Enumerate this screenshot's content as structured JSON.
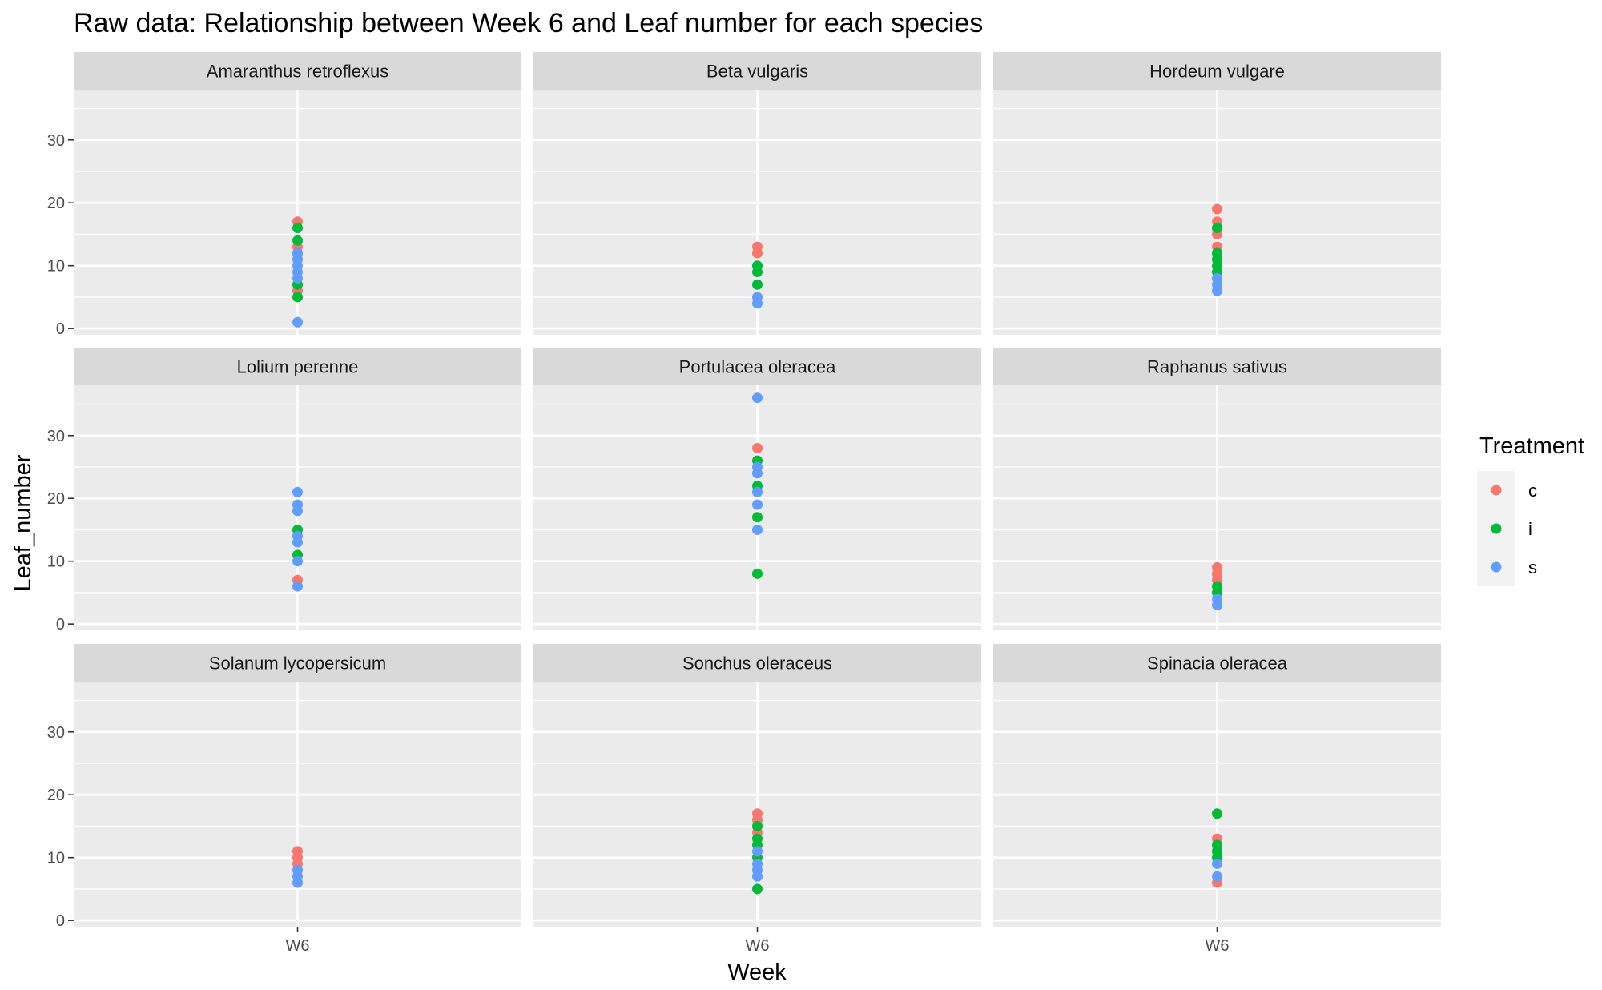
{
  "chart_data": {
    "type": "scatter",
    "title": "Raw data: Relationship between Week 6 and Leaf number for each species",
    "xlabel": "Week",
    "ylabel": "Leaf_number",
    "x_categories": [
      "W6"
    ],
    "ylim": [
      -1,
      38
    ],
    "y_ticks": [
      0,
      10,
      20,
      30
    ],
    "grid": true,
    "facet_layout": {
      "rows": 3,
      "cols": 3
    },
    "legend": {
      "title": "Treatment",
      "placement": "right",
      "entries": [
        {
          "label": "c",
          "color": "#F8766D"
        },
        {
          "label": "i",
          "color": "#00BA38"
        },
        {
          "label": "s",
          "color": "#619CFF"
        }
      ]
    },
    "panels": [
      {
        "name": "Amaranthus retroflexus",
        "points": {
          "c": [
            17,
            13,
            12,
            7,
            6
          ],
          "i": [
            16,
            14,
            7,
            5
          ],
          "s": [
            12,
            11,
            10,
            9,
            8,
            1
          ]
        }
      },
      {
        "name": "Beta vulgaris",
        "points": {
          "c": [
            13,
            12
          ],
          "i": [
            10,
            9,
            7
          ],
          "s": [
            5,
            4
          ]
        }
      },
      {
        "name": "Hordeum vulgare",
        "points": {
          "c": [
            19,
            17,
            15,
            13
          ],
          "i": [
            16,
            12,
            11,
            10,
            9
          ],
          "s": [
            8,
            7,
            6
          ]
        }
      },
      {
        "name": "Lolium perenne",
        "points": {
          "c": [
            7
          ],
          "i": [
            15,
            11
          ],
          "s": [
            21,
            19,
            18,
            14,
            13,
            10,
            6
          ]
        }
      },
      {
        "name": "Portulacea oleracea",
        "points": {
          "c": [
            28
          ],
          "i": [
            26,
            22,
            17,
            8
          ],
          "s": [
            36,
            25,
            24,
            21,
            19,
            15
          ]
        }
      },
      {
        "name": "Raphanus sativus",
        "points": {
          "c": [
            9,
            8,
            7
          ],
          "i": [
            6,
            5
          ],
          "s": [
            4,
            3
          ]
        }
      },
      {
        "name": "Solanum lycopersicum",
        "points": {
          "c": [
            11,
            10,
            9
          ],
          "i": [],
          "s": [
            8,
            7,
            6
          ]
        }
      },
      {
        "name": "Sonchus oleraceus",
        "points": {
          "c": [
            17,
            16,
            14
          ],
          "i": [
            15,
            13,
            12,
            10,
            5
          ],
          "s": [
            11,
            9,
            8,
            7
          ]
        }
      },
      {
        "name": "Spinacia oleracea",
        "points": {
          "c": [
            13,
            6
          ],
          "i": [
            17,
            12,
            11,
            10
          ],
          "s": [
            9,
            7
          ]
        }
      }
    ]
  }
}
